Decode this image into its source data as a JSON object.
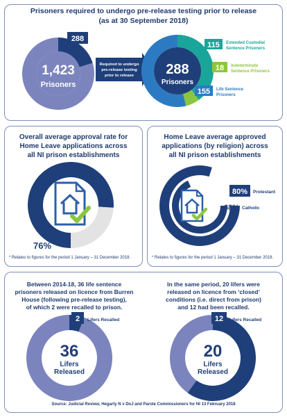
{
  "colors": {
    "navy": "#1f3f7a",
    "lavender": "#7b84bd",
    "light_gray": "#e3e3e3",
    "teal": "#1aa59a",
    "lime": "#8cc63f",
    "blue": "#2c7bc2",
    "doc_blue": "#2a5fa8",
    "check_green": "#8cc63f"
  },
  "top": {
    "title_line1": "Prisoners required to undergo pre-release testing prior to release",
    "title_line2": "(as at 30 September 2018)",
    "left_donut": {
      "total": "1,423",
      "label": "Prisoners",
      "segment_label": "288"
    },
    "arrow_text": [
      "Required to undergo",
      "pre-release testing",
      "prior to release"
    ],
    "right_donut": {
      "total": "288",
      "label": "Prisoners"
    },
    "breakdown": [
      {
        "value": "115",
        "label1": "Extended Custodial",
        "label2": "Sentence Prisoners"
      },
      {
        "value": "18",
        "label1": "Indeterminate",
        "label2": "Sentence Prisoners"
      },
      {
        "value": "155",
        "label1": "Life Sentence",
        "label2": "Prisoners"
      }
    ]
  },
  "mid_left": {
    "title": [
      "Overall average approval rate for",
      "Home Leave applications across",
      "all NI prison establishments"
    ],
    "value": "76%",
    "footnote": "* Relates to figures for the period 1 January – 31 December 2018."
  },
  "mid_right": {
    "title": [
      "Home Leave average approved",
      "applications (by religion) across",
      "all NI prison establishments"
    ],
    "rings": [
      {
        "value": "80%",
        "label": "Protestant"
      },
      {
        "value": "68%",
        "label": "Catholic"
      }
    ],
    "footnote": "* Relates to figures for the period 1 January – 31 December 2018."
  },
  "bottom_left": {
    "text": [
      "Between 2014-18, 36 life sentence",
      "prisoners released on licence from Burren",
      "House (following pre-release testing),",
      "of which 2 were recalled to prison."
    ],
    "recalled": "2",
    "recalled_label": "Lifers Recalled",
    "released": "36",
    "released_l1": "Lifers",
    "released_l2": "Released"
  },
  "bottom_right": {
    "text": [
      "In the same period, 20 lifers were",
      "released on licence from ‘closed’",
      "conditions (i.e. direct from prison)",
      "and 12 had been recalled."
    ],
    "recalled": "12",
    "recalled_label": "Lifers Recalled",
    "released": "20",
    "released_l1": "Lifers",
    "released_l2": "Released"
  },
  "source": "Source: Judicial Review, Hegarty N v DoJ and Parole Commissioners for NI 13 February 2018",
  "chart_data": [
    {
      "type": "pie",
      "title": "Prisoners required to undergo pre-release testing prior to release (as at 30 September 2018)",
      "categories": [
        "Required to undergo pre-release testing",
        "Other prisoners"
      ],
      "values": [
        288,
        1135
      ],
      "total": 1423
    },
    {
      "type": "pie",
      "categories": [
        "Extended Custodial Sentence Prisoners",
        "Indeterminate Sentence Prisoners",
        "Life Sentence Prisoners"
      ],
      "values": [
        115,
        18,
        155
      ],
      "total": 288
    },
    {
      "type": "pie",
      "title": "Overall average approval rate for Home Leave applications across all NI prison establishments",
      "categories": [
        "Approved",
        "Not approved"
      ],
      "values": [
        76,
        24
      ]
    },
    {
      "type": "bar",
      "title": "Home Leave average approved applications (by religion) across all NI prison establishments",
      "categories": [
        "Protestant",
        "Catholic"
      ],
      "values": [
        80,
        68
      ]
    },
    {
      "type": "pie",
      "categories": [
        "Lifers Recalled",
        "Not recalled"
      ],
      "values": [
        2,
        34
      ],
      "total": 36
    },
    {
      "type": "pie",
      "categories": [
        "Lifers Recalled",
        "Not recalled"
      ],
      "values": [
        12,
        8
      ],
      "total": 20
    }
  ]
}
